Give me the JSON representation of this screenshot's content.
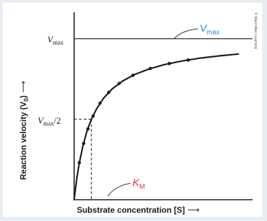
{
  "chart_data": {
    "type": "line",
    "title": "",
    "xlabel": "Substrate concentration [S]",
    "ylabel": "Reaction velocity (V",
    "ylabel_sub": "0",
    "ylabel_tail": ")",
    "x_arrow": "⟶",
    "y_arrow": "⟶",
    "vmax": 1.0,
    "km": 1.0,
    "xlim": [
      0,
      10
    ],
    "ylim": [
      0,
      1.1
    ],
    "curve_x": [
      0.0,
      0.15,
      0.3,
      0.5,
      0.75,
      1.0,
      1.3,
      1.7,
      2.2,
      2.8,
      3.5,
      4.3,
      5.2,
      6.2,
      7.3,
      8.5,
      9.5
    ],
    "curve_y": [
      0.0,
      0.13,
      0.23,
      0.33,
      0.43,
      0.5,
      0.565,
      0.63,
      0.688,
      0.737,
      0.778,
      0.811,
      0.839,
      0.861,
      0.88,
      0.895,
      0.905
    ],
    "points_x": [
      0.3,
      0.55,
      0.8,
      1.1,
      1.5,
      2.0,
      2.6,
      3.4,
      4.4,
      5.5,
      6.6
    ],
    "points_y": [
      0.23,
      0.35,
      0.44,
      0.52,
      0.6,
      0.667,
      0.722,
      0.773,
      0.815,
      0.846,
      0.868
    ]
  },
  "labels": {
    "vmax_left": "V",
    "vmax_left_sub": "max",
    "vmax_right": "V",
    "vmax_right_sub": "max",
    "half_vmax": "V",
    "half_vmax_sub": "max",
    "half_vmax_tail": "/2",
    "km": "K",
    "km_sub": "M",
    "credit": "© Macmillan Learning"
  },
  "colors": {
    "vmax_label": "#1a8fd0",
    "km_label": "#e8324a",
    "curve": "#1a1a1a",
    "axis": "#1a1a1a",
    "background": "#e8edf3"
  }
}
